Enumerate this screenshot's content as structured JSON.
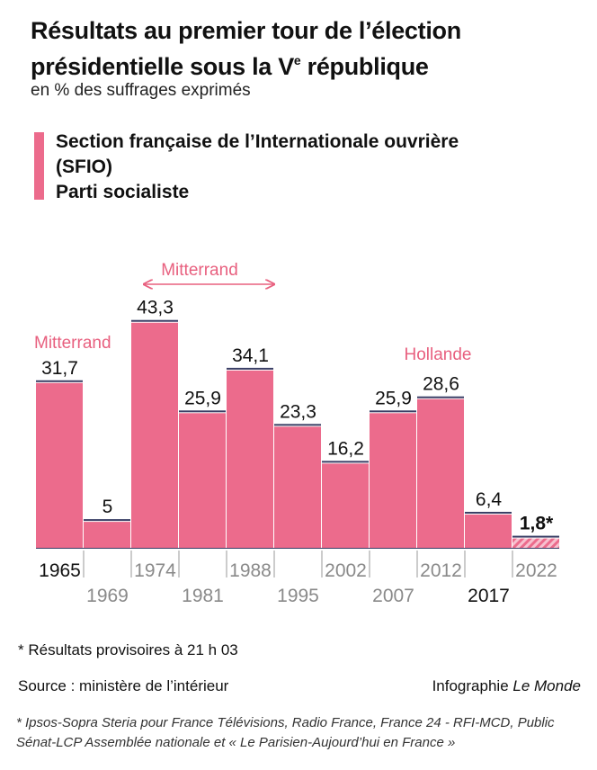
{
  "header": {
    "title": "Résultats au premier tour de l’élection présidentielle sous la V",
    "title_sup": "e",
    "title_end": " république",
    "subtitle": "en % des suffrages exprimés"
  },
  "legend": {
    "items": [
      "Section française de l’Internationale ouvrière",
      "(SFIO)",
      "Parti socialiste"
    ],
    "color": "#ec6b8c"
  },
  "chart_data": {
    "type": "bar",
    "categories": [
      "1965",
      "1969",
      "1974",
      "1981",
      "1988",
      "1995",
      "2002",
      "2007",
      "2012",
      "2017",
      "2022"
    ],
    "values": [
      31.7,
      5,
      43.3,
      25.9,
      34.1,
      23.3,
      16.2,
      25.9,
      28.6,
      6.4,
      1.8
    ],
    "value_labels": [
      "31,7",
      "5",
      "43,3",
      "25,9",
      "34,1",
      "23,3",
      "16,2",
      "25,9",
      "28,6",
      "6,4",
      "1,8*"
    ],
    "ylim": [
      0,
      50
    ],
    "provisional_index": 10,
    "emphasized_tick_indices": [
      0,
      9
    ],
    "annotations": {
      "mitterrand_arrow": "Mitterrand",
      "mitterrand_1965": "Mitterrand",
      "hollande_2012": "Hollande"
    },
    "colors": {
      "bar": "#ec6b8c",
      "accent_text": "#e8607f",
      "tick_muted": "#8a8a8a",
      "tick_strong": "#111111"
    }
  },
  "footer": {
    "note": "* Résultats provisoires à 21 h 03",
    "source": "Source : ministère de l’intérieur",
    "credit_prefix": "Infographie ",
    "credit_name": "Le Monde",
    "poll": "* Ipsos-Sopra Steria pour France Télévisions, Radio France, France 24 - RFI-MCD, Public Sénat-LCP Assemblée nationale et « Le Parisien-Aujourd’hui en France »"
  }
}
